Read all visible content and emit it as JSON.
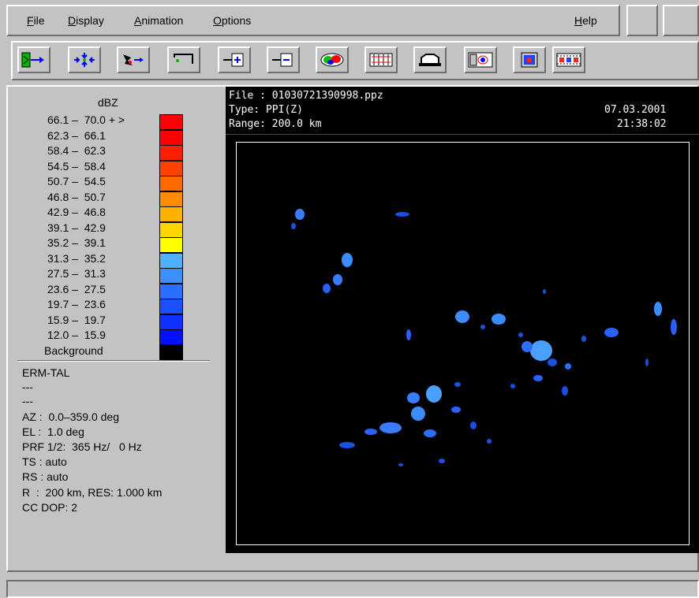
{
  "menu": {
    "items": [
      {
        "label_u": "F",
        "label_rest": "ile"
      },
      {
        "label_u": "D",
        "label_rest": "isplay"
      },
      {
        "label_u": "A",
        "label_rest": "nimation"
      },
      {
        "label_u": "O",
        "label_rest": "ptions"
      }
    ],
    "help": {
      "label_u": "H",
      "label_rest": "elp"
    }
  },
  "toolbar": {
    "icons": [
      "product-select-icon",
      "expand-view-icon",
      "zoom-move-icon",
      "section-icon",
      "add-panel-icon",
      "remove-panel-icon",
      "color-cells-icon",
      "profile-bars-icon",
      "cloud-icon",
      "window-compare-icon",
      "layer-image-icon",
      "film-strip-icon"
    ]
  },
  "legend": {
    "title": "dBZ",
    "rows": [
      {
        "range": "66.1 –  70.0 + >",
        "color": "#ff0000"
      },
      {
        "range": "62.3 –  66.1",
        "color": "#ff0000"
      },
      {
        "range": "58.4 –  62.3",
        "color": "#ff2000"
      },
      {
        "range": "54.5 –  58.4",
        "color": "#ff4200"
      },
      {
        "range": "50.7 –  54.5",
        "color": "#ff6a00"
      },
      {
        "range": "46.8 –  50.7",
        "color": "#ff8c00"
      },
      {
        "range": "42.9 –  46.8",
        "color": "#ffb000"
      },
      {
        "range": "39.1 –  42.9",
        "color": "#ffd600"
      },
      {
        "range": "35.2 –  39.1",
        "color": "#ffff00"
      },
      {
        "range": "31.3 –  35.2",
        "color": "#4fb0ff"
      },
      {
        "range": "27.5 –  31.3",
        "color": "#3a90ff"
      },
      {
        "range": "23.6 –  27.5",
        "color": "#2a70ff"
      },
      {
        "range": "19.7 –  23.6",
        "color": "#1a50ff"
      },
      {
        "range": "15.9 –  19.7",
        "color": "#1030ff"
      },
      {
        "range": "12.0 –  15.9",
        "color": "#0010ff"
      }
    ],
    "background_label": "Background",
    "background_color": "#000000"
  },
  "info": {
    "lines": [
      "ERM-TAL",
      "---",
      "---",
      "AZ :  0.0–359.0 deg",
      "EL :  1.0 deg",
      "PRF 1/2:  365 Hz/   0 Hz",
      "TS : auto",
      "RS : auto",
      "R  :  200 km, RES: 1.000 km",
      "CC DOP: 2"
    ]
  },
  "radar": {
    "file": "File : 01030721390998.ppz",
    "type": "Type: PPI(Z)",
    "range": "Range: 200.0 km",
    "date": "07.03.2001",
    "time": "21:38:02"
  }
}
